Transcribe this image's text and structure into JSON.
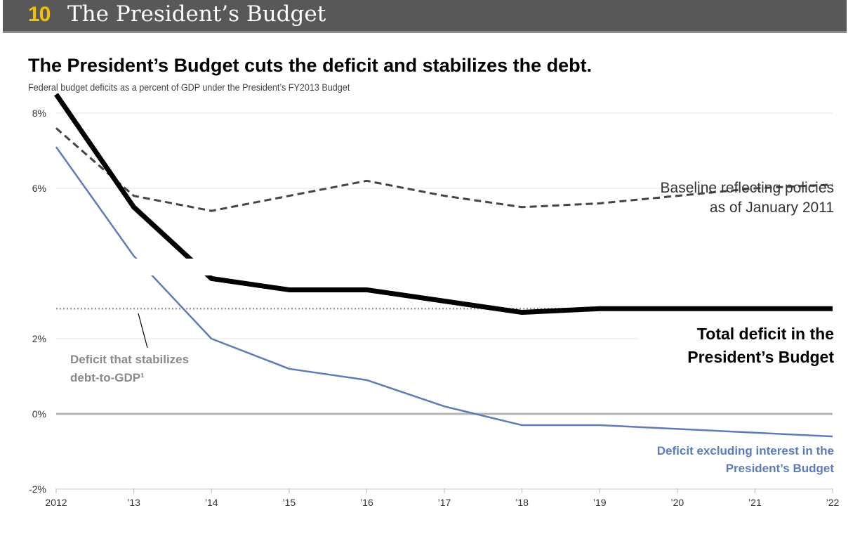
{
  "header": {
    "section_number": "10",
    "section_title": "The President’s Budget"
  },
  "chart_data": {
    "type": "line",
    "title": "The President’s Budget cuts the deficit and stabilizes the debt.",
    "subtitle": "Federal budget deficits as a percent of GDP under the President’s FY2013 Budget",
    "x_tick_labels": [
      "2012",
      "’13",
      "’14",
      "’15",
      "’16",
      "’17",
      "’18",
      "’19",
      "’20",
      "’21",
      "’22"
    ],
    "y_tick_labels": [
      "8%",
      "6%",
      "2%",
      "0%",
      "-2%"
    ],
    "y_tick_values": [
      8,
      6,
      2,
      0,
      -2
    ],
    "xlim": [
      2012,
      2022
    ],
    "ylim": [
      -2,
      8.5
    ],
    "grid": true,
    "series": [
      {
        "name": "Baseline reflecting policies as of January 2011",
        "style": "dashed",
        "color": "#444444",
        "x": [
          2012,
          2013,
          2014,
          2015,
          2016,
          2017,
          2018,
          2019,
          2020,
          2021,
          2022
        ],
        "values": [
          7.6,
          5.8,
          5.4,
          5.8,
          6.2,
          5.8,
          5.5,
          5.6,
          5.8,
          6.0,
          6.1
        ]
      },
      {
        "name": "Total deficit in the President’s Budget",
        "style": "solid-thick",
        "color": "#000000",
        "x": [
          2012,
          2013,
          2014,
          2015,
          2016,
          2017,
          2018,
          2019,
          2020,
          2021,
          2022
        ],
        "values": [
          8.5,
          5.5,
          3.6,
          3.3,
          3.3,
          3.0,
          2.7,
          2.8,
          2.8,
          2.8,
          2.8
        ]
      },
      {
        "name": "Deficit excluding interest in the President’s Budget",
        "style": "solid",
        "color": "#5b7bbf",
        "x": [
          2012,
          2013,
          2014,
          2015,
          2016,
          2017,
          2018,
          2019,
          2020,
          2021,
          2022
        ],
        "values": [
          7.1,
          4.2,
          2.0,
          1.2,
          0.9,
          0.2,
          -0.3,
          -0.3,
          -0.4,
          -0.5,
          -0.6
        ]
      },
      {
        "name": "Deficit that stabilizes debt-to-GDP¹",
        "style": "dotted",
        "color": "#999999",
        "x": [
          2012,
          2022
        ],
        "values": [
          2.8,
          2.8
        ]
      }
    ],
    "annotations": {
      "baseline_line1": "Baseline reflecting policies",
      "baseline_line2": "as of January 2011",
      "total_line1": "Total deficit in the",
      "total_line2": "President’s Budget",
      "stabilize_line1": "Deficit that stabilizes",
      "stabilize_line2": "debt-to-GDP¹",
      "excl_line1": "Deficit excluding interest in the",
      "excl_line2": "President’s Budget"
    }
  }
}
